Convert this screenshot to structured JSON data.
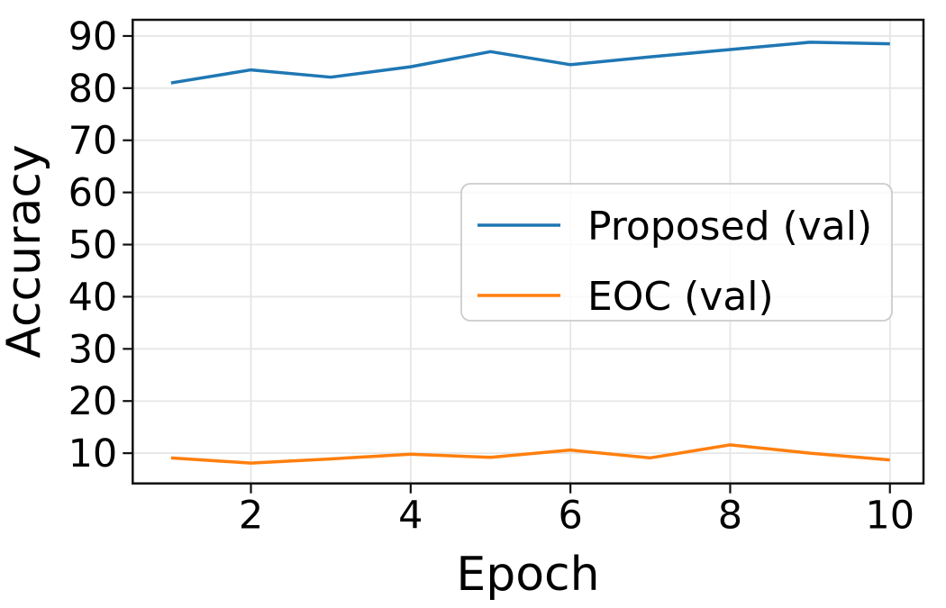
{
  "chart_data": {
    "type": "line",
    "title": "",
    "xlabel": "Epoch",
    "ylabel": "Accuracy",
    "x": [
      1,
      2,
      3,
      4,
      5,
      6,
      7,
      8,
      9,
      10
    ],
    "series": [
      {
        "name": "Proposed (val)",
        "color": "#1f77b4",
        "values": [
          81.0,
          83.5,
          82.1,
          84.1,
          87.0,
          84.5,
          86.0,
          87.4,
          88.8,
          88.5
        ]
      },
      {
        "name": "EOC (val)",
        "color": "#ff7f0e",
        "values": [
          9.1,
          8.1,
          8.9,
          9.8,
          9.2,
          10.6,
          9.1,
          11.6,
          10.0,
          8.7
        ]
      }
    ],
    "xticks": [
      2,
      4,
      6,
      8,
      10
    ],
    "yticks": [
      10,
      20,
      30,
      40,
      50,
      60,
      70,
      80,
      90
    ],
    "xlim": [
      0.52,
      10.42
    ],
    "ylim": [
      4.2,
      93.1
    ],
    "grid": true,
    "legend": {
      "position": "center-right",
      "entries": [
        "Proposed (val)",
        "EOC (val)"
      ]
    },
    "colors": {
      "gridline": "#e6e6e6",
      "spine": "#111111",
      "legend_border": "#cccccc",
      "text": "#000000"
    }
  }
}
